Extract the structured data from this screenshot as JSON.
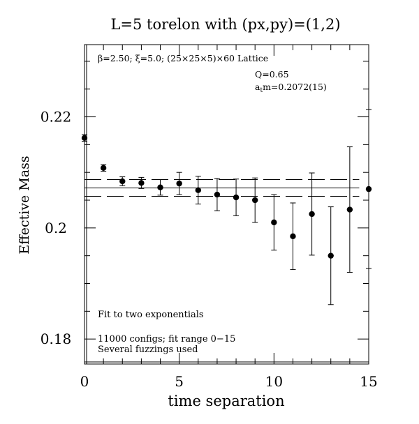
{
  "chart_data": {
    "type": "scatter",
    "title": "L=5 torelon with (px,py)=(1,2)",
    "xlabel": "time separation",
    "ylabel": "Effective Mass",
    "xlim": [
      0,
      15
    ],
    "ylim": [
      0.1755,
      0.233
    ],
    "x_ticks": [
      0,
      5,
      10,
      15
    ],
    "x_tick_labels": [
      "0",
      "5",
      "10",
      "15"
    ],
    "y_ticks": [
      0.18,
      0.2,
      0.22
    ],
    "y_tick_labels": [
      "0.18",
      "0.2",
      "0.22"
    ],
    "grid": false,
    "annotations": {
      "lattice": "β=2.50; ξ=5.0; (25×25×5)×60 Lattice",
      "q_value": "Q=0.65",
      "mass_prefix": "a",
      "mass_sub": "t",
      "mass_value": "m=0.2072(15)",
      "fit_note": "Fit to two exponentials",
      "configs": "11000 configs; fit range 0−15",
      "fuzzings": "Several fuzzings used"
    },
    "fit": {
      "x_range": [
        0,
        14.5
      ],
      "value": 0.2072,
      "error": 0.0015
    },
    "points": [
      {
        "x": 0,
        "y": 0.2162,
        "err": 0.0006
      },
      {
        "x": 1,
        "y": 0.2108,
        "err": 0.0006
      },
      {
        "x": 2,
        "y": 0.2084,
        "err": 0.0008
      },
      {
        "x": 3,
        "y": 0.2081,
        "err": 0.001
      },
      {
        "x": 4,
        "y": 0.2073,
        "err": 0.0014
      },
      {
        "x": 5,
        "y": 0.208,
        "err": 0.002
      },
      {
        "x": 6,
        "y": 0.2068,
        "err": 0.0025
      },
      {
        "x": 7,
        "y": 0.206,
        "err": 0.0029
      },
      {
        "x": 8,
        "y": 0.2055,
        "err": 0.0033
      },
      {
        "x": 9,
        "y": 0.205,
        "err": 0.004
      },
      {
        "x": 10,
        "y": 0.201,
        "err": 0.005
      },
      {
        "x": 11,
        "y": 0.1985,
        "err": 0.006
      },
      {
        "x": 12,
        "y": 0.2025,
        "err": 0.0074
      },
      {
        "x": 13,
        "y": 0.195,
        "err": 0.0088
      },
      {
        "x": 14,
        "y": 0.2033,
        "err": 0.0113
      },
      {
        "x": 15,
        "y": 0.207,
        "err": 0.0143
      }
    ]
  }
}
